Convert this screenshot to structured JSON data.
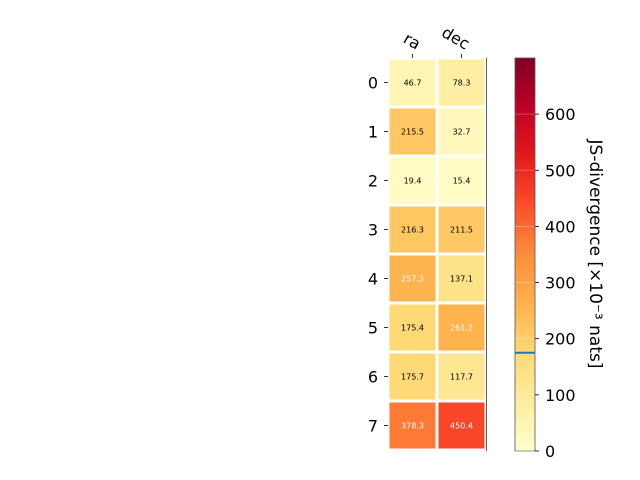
{
  "chart_data": {
    "type": "heatmap",
    "title": "",
    "x_categories": [
      "ra",
      "dec"
    ],
    "y_categories": [
      "0",
      "1",
      "2",
      "3",
      "4",
      "5",
      "6",
      "7"
    ],
    "values": [
      [
        46.7,
        78.3
      ],
      [
        215.5,
        32.7
      ],
      [
        19.4,
        15.4
      ],
      [
        216.3,
        211.5
      ],
      [
        257.3,
        137.1
      ],
      [
        175.4,
        261.2
      ],
      [
        175.7,
        117.7
      ],
      [
        378.3,
        450.4
      ]
    ],
    "colorbar": {
      "label": "JS-divergence [×10⁻³ nats]",
      "range": [
        0,
        700
      ],
      "ticks": [
        0,
        100,
        200,
        300,
        400,
        500,
        600
      ],
      "marker_value": 175,
      "marker_color": "#1f77b4",
      "colormap": "YlOrRd"
    },
    "text_color_threshold": 230
  }
}
